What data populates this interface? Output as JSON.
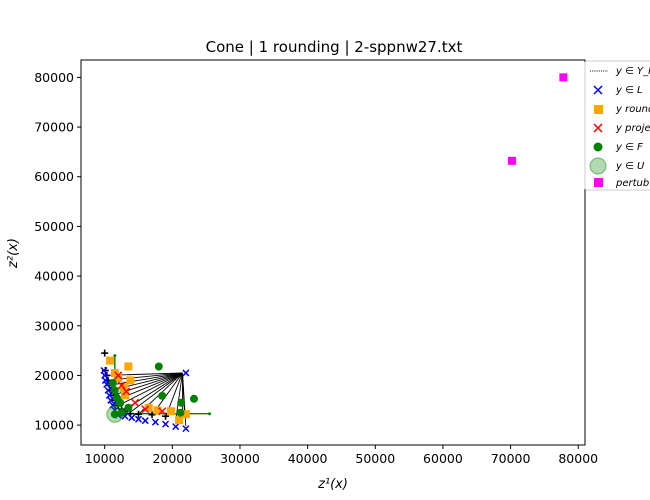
{
  "chart_data": {
    "type": "scatter",
    "title": "Cone | 1 rounding | 2-sppnw27.txt",
    "xlabel": "z¹(x)",
    "ylabel": "z²(x)",
    "xlim": [
      6500,
      81000
    ],
    "ylim": [
      6000,
      83500
    ],
    "xticks": [
      10000,
      20000,
      30000,
      40000,
      50000,
      60000,
      70000,
      80000
    ],
    "yticks": [
      10000,
      20000,
      30000,
      40000,
      50000,
      60000,
      70000,
      80000
    ],
    "grid": false,
    "legend_position": "top-right",
    "legend": [
      "y ∈ Y_N",
      "y ∈ L",
      "y round",
      "y proje",
      "y ∈ F",
      "y ∈ U",
      "pertub"
    ],
    "series": {
      "YN": {
        "color": "#000000",
        "points": [
          [
            10000,
            24500
          ],
          [
            10100,
            21000
          ],
          [
            10300,
            20000
          ],
          [
            10500,
            19000
          ],
          [
            10700,
            18000
          ],
          [
            11000,
            17000
          ],
          [
            11300,
            16000
          ],
          [
            11600,
            15000
          ],
          [
            12000,
            14000
          ],
          [
            12500,
            13200
          ],
          [
            13000,
            12700
          ],
          [
            13800,
            12300
          ],
          [
            15000,
            12200
          ],
          [
            17000,
            12100
          ],
          [
            19000,
            11800
          ]
        ]
      },
      "L": {
        "color": "#0000ff",
        "points": [
          [
            9900,
            21000
          ],
          [
            10000,
            20000
          ],
          [
            10100,
            19000
          ],
          [
            10300,
            18200
          ],
          [
            10500,
            17000
          ],
          [
            10700,
            16000
          ],
          [
            10900,
            15000
          ],
          [
            11200,
            14000
          ],
          [
            11500,
            13000
          ],
          [
            12000,
            12000
          ],
          [
            13000,
            11800
          ],
          [
            14000,
            11500
          ],
          [
            15000,
            11200
          ],
          [
            16000,
            10900
          ],
          [
            17500,
            10600
          ],
          [
            19000,
            10200
          ],
          [
            20500,
            9700
          ],
          [
            22000,
            9300
          ],
          [
            22000,
            20500
          ]
        ]
      },
      "rounding": {
        "color": "#ffa500",
        "points": [
          [
            10800,
            23000
          ],
          [
            11500,
            20500
          ],
          [
            12000,
            19500
          ],
          [
            13500,
            21800
          ],
          [
            13800,
            19000
          ],
          [
            12800,
            17500
          ],
          [
            13000,
            16000
          ],
          [
            16500,
            13500
          ],
          [
            17800,
            13000
          ],
          [
            19800,
            12800
          ],
          [
            21000,
            11000
          ],
          [
            22000,
            12200
          ]
        ]
      },
      "projection": {
        "color": "#ff0000",
        "points": [
          [
            12000,
            20000
          ],
          [
            12500,
            18000
          ],
          [
            13200,
            16800
          ],
          [
            14500,
            14500
          ],
          [
            16000,
            13200
          ],
          [
            18500,
            12800
          ]
        ]
      },
      "F": {
        "color": "#008000",
        "points": [
          [
            11200,
            18500
          ],
          [
            11500,
            17000
          ],
          [
            11800,
            15500
          ],
          [
            12300,
            14500
          ],
          [
            13500,
            13500
          ],
          [
            12500,
            12500
          ],
          [
            11500,
            12200
          ],
          [
            18000,
            21800
          ],
          [
            18500,
            15900
          ],
          [
            21300,
            14500
          ],
          [
            23200,
            15300
          ],
          [
            21200,
            12500
          ]
        ]
      },
      "U": {
        "color": "#008000",
        "points": [
          [
            11500,
            12200
          ]
        ]
      },
      "perturbed": {
        "color": "#ff00ff",
        "points": [
          [
            70200,
            63200
          ],
          [
            77800,
            80000
          ]
        ]
      },
      "green_line": {
        "color": "#008000",
        "points": [
          [
            11500,
            24000
          ],
          [
            11500,
            12300
          ],
          [
            25500,
            12300
          ]
        ]
      },
      "cone_segments": {
        "color": "#000000",
        "from": [
          21500,
          20500
        ],
        "to": [
          [
            10000,
            20000
          ],
          [
            10300,
            19000
          ],
          [
            10600,
            18000
          ],
          [
            10900,
            17000
          ],
          [
            11200,
            16000
          ],
          [
            11600,
            15000
          ],
          [
            12100,
            14000
          ],
          [
            12800,
            13000
          ],
          [
            13500,
            12300
          ],
          [
            15000,
            12200
          ],
          [
            17000,
            12000
          ],
          [
            19000,
            11600
          ],
          [
            20500,
            11000
          ],
          [
            21500,
            10500
          ],
          [
            21800,
            12500
          ],
          [
            22000,
            9800
          ]
        ]
      }
    }
  }
}
